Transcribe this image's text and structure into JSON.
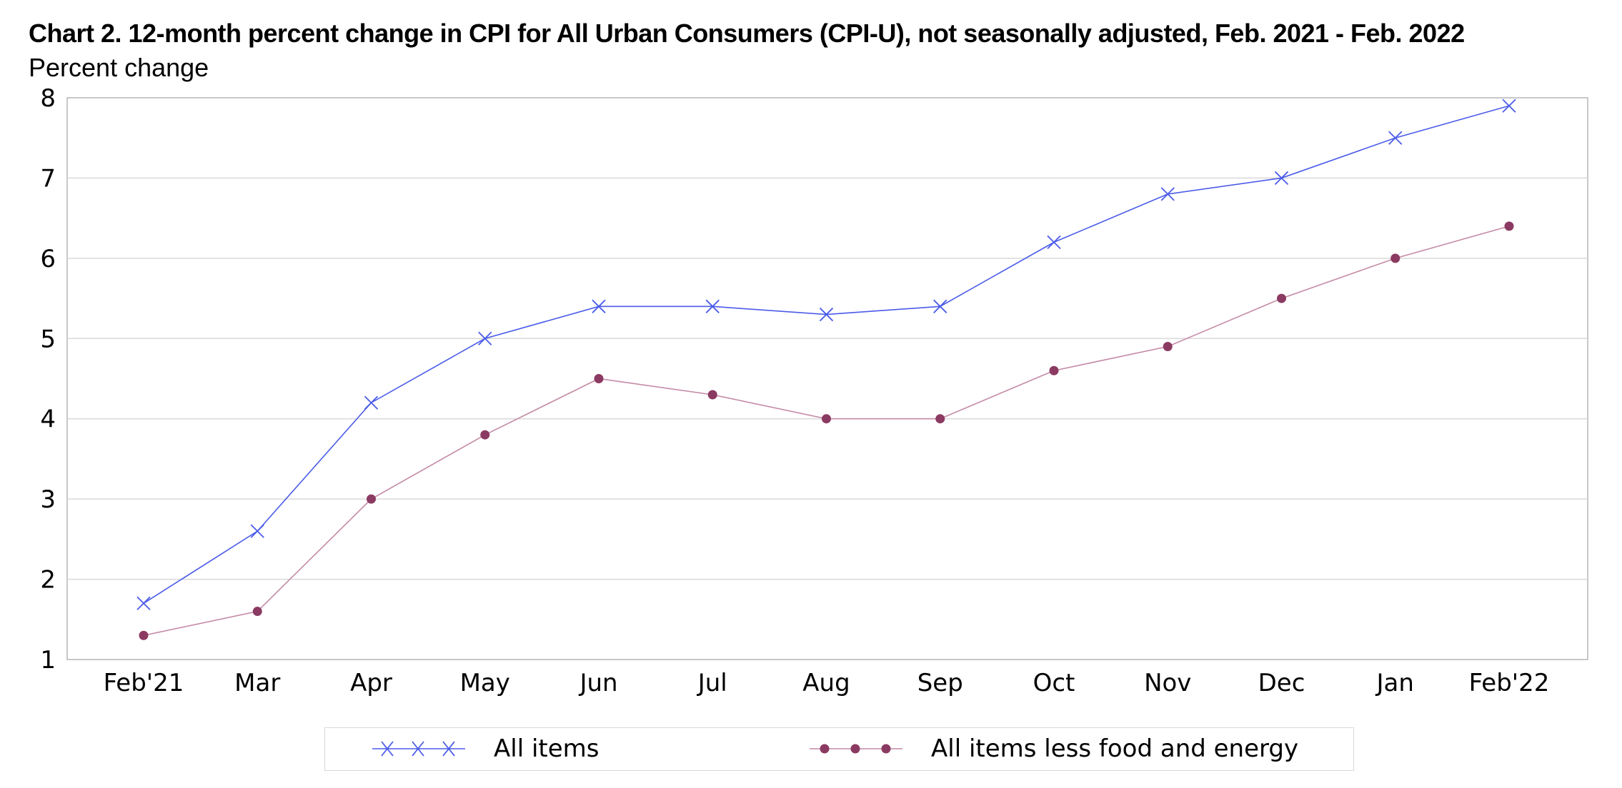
{
  "chart_data": {
    "type": "line",
    "title": "Chart 2. 12-month percent change in CPI for All Urban Consumers (CPI-U), not seasonally adjusted, Feb. 2021 - Feb. 2022",
    "ylabel": "Percent change",
    "xlabel": "",
    "categories": [
      "Feb'21",
      "Mar",
      "Apr",
      "May",
      "Jun",
      "Jul",
      "Aug",
      "Sep",
      "Oct",
      "Nov",
      "Dec",
      "Jan",
      "Feb'22"
    ],
    "ylim": [
      1,
      8
    ],
    "yticks": [
      "1",
      "2",
      "3",
      "4",
      "5",
      "6",
      "7",
      "8"
    ],
    "grid": "horizontal",
    "legend_position": "bottom",
    "series": [
      {
        "name": "All items",
        "color": "#4a5be8",
        "marker": "x",
        "values": [
          1.7,
          2.6,
          4.2,
          5.0,
          5.4,
          5.4,
          5.3,
          5.4,
          6.2,
          6.8,
          7.0,
          7.5,
          7.9
        ]
      },
      {
        "name": "All items less food and energy",
        "color": "#8b3a62",
        "line_color": "#c48aa6",
        "marker": "circle",
        "values": [
          1.3,
          1.6,
          3.0,
          3.8,
          4.5,
          4.3,
          4.0,
          4.0,
          4.6,
          4.9,
          5.5,
          6.0,
          6.4
        ]
      }
    ]
  }
}
